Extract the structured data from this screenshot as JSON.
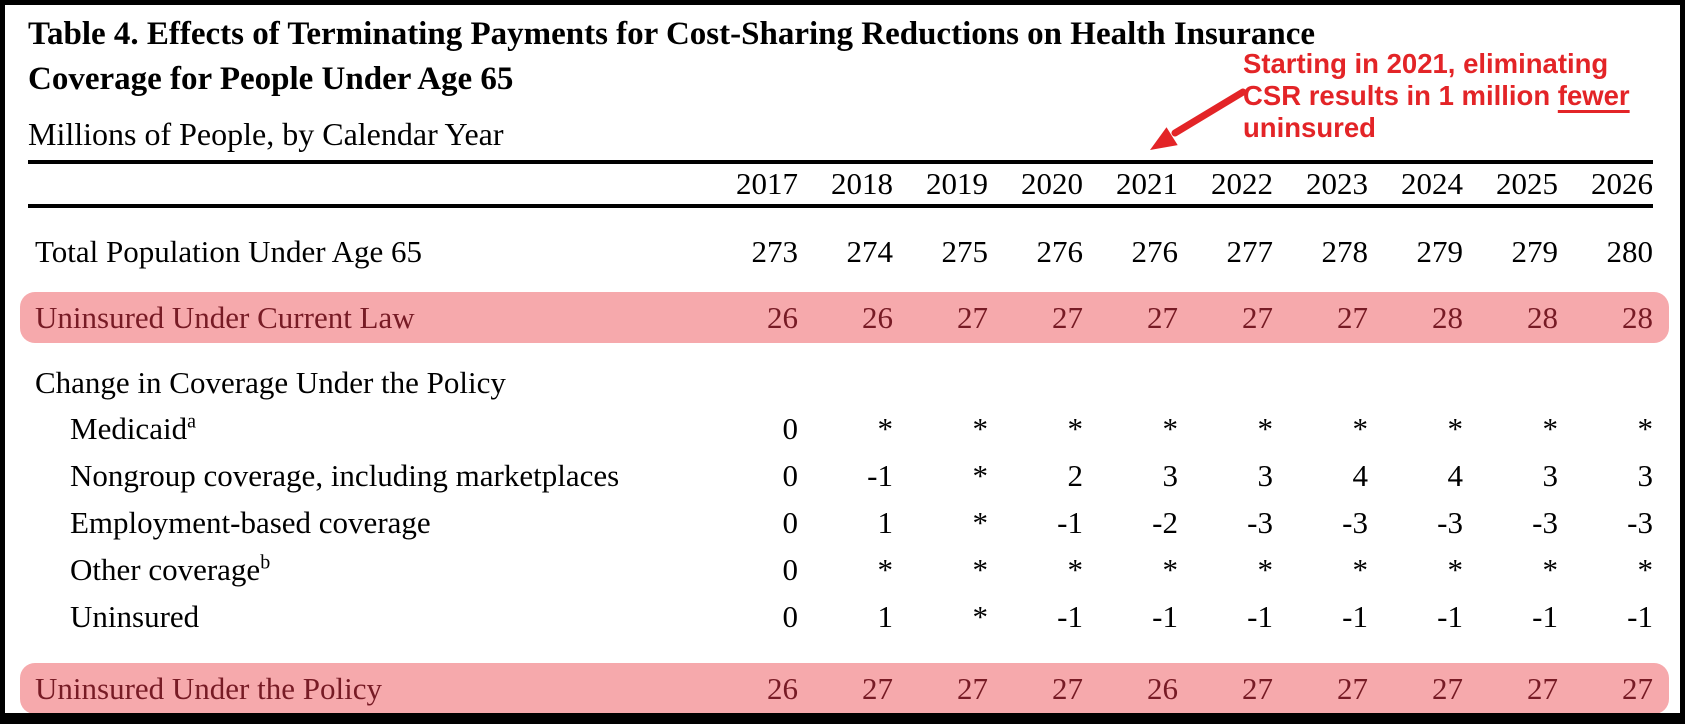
{
  "colors": {
    "highlight_bg": "#f6a9ac",
    "highlight_text": "#771b25",
    "annotation_red": "#e32427",
    "text": "#000000",
    "background": "#ffffff"
  },
  "header": {
    "title_lines": [
      "Table 4. Effects of Terminating Payments for Cost-Sharing Reductions on Health Insurance",
      "Coverage for People Under Age 65"
    ],
    "subtitle": "Millions of People, by Calendar Year"
  },
  "annotation": {
    "line1": "Starting in 2021, eliminating",
    "line2_prefix": "CSR results in 1 million ",
    "line2_underlined": "fewer",
    "line3": "uninsured",
    "arrow_target_year": "2021"
  },
  "table": {
    "years": [
      "2017",
      "2018",
      "2019",
      "2020",
      "2021",
      "2022",
      "2023",
      "2024",
      "2025",
      "2026"
    ],
    "rows": [
      {
        "kind": "population",
        "label": "Total Population Under Age 65",
        "values": [
          "273",
          "274",
          "275",
          "276",
          "276",
          "277",
          "278",
          "279",
          "279",
          "280"
        ]
      },
      {
        "kind": "highlight",
        "label": "Uninsured Under Current Law",
        "values": [
          "26",
          "26",
          "27",
          "27",
          "27",
          "27",
          "27",
          "28",
          "28",
          "28"
        ]
      },
      {
        "kind": "section",
        "label": "Change in Coverage Under the Policy",
        "values": []
      },
      {
        "kind": "item",
        "label": "Medicaid",
        "sup": "a",
        "values": [
          "0",
          "*",
          "*",
          "*",
          "*",
          "*",
          "*",
          "*",
          "*",
          "*"
        ]
      },
      {
        "kind": "item",
        "label": "Nongroup coverage, including marketplaces",
        "values": [
          "0",
          "-1",
          "*",
          "2",
          "3",
          "3",
          "4",
          "4",
          "3",
          "3"
        ]
      },
      {
        "kind": "item",
        "label": "Employment-based coverage",
        "values": [
          "0",
          "1",
          "*",
          "-1",
          "-2",
          "-3",
          "-3",
          "-3",
          "-3",
          "-3"
        ]
      },
      {
        "kind": "item",
        "label": "Other coverage",
        "sup": "b",
        "values": [
          "0",
          "*",
          "*",
          "*",
          "*",
          "*",
          "*",
          "*",
          "*",
          "*"
        ]
      },
      {
        "kind": "item",
        "label": "Uninsured",
        "values": [
          "0",
          "1",
          "*",
          "-1",
          "-1",
          "-1",
          "-1",
          "-1",
          "-1",
          "-1"
        ]
      },
      {
        "kind": "highlight",
        "label": "Uninsured Under the Policy",
        "values": [
          "26",
          "27",
          "27",
          "27",
          "26",
          "27",
          "27",
          "27",
          "27",
          "27"
        ]
      }
    ]
  }
}
